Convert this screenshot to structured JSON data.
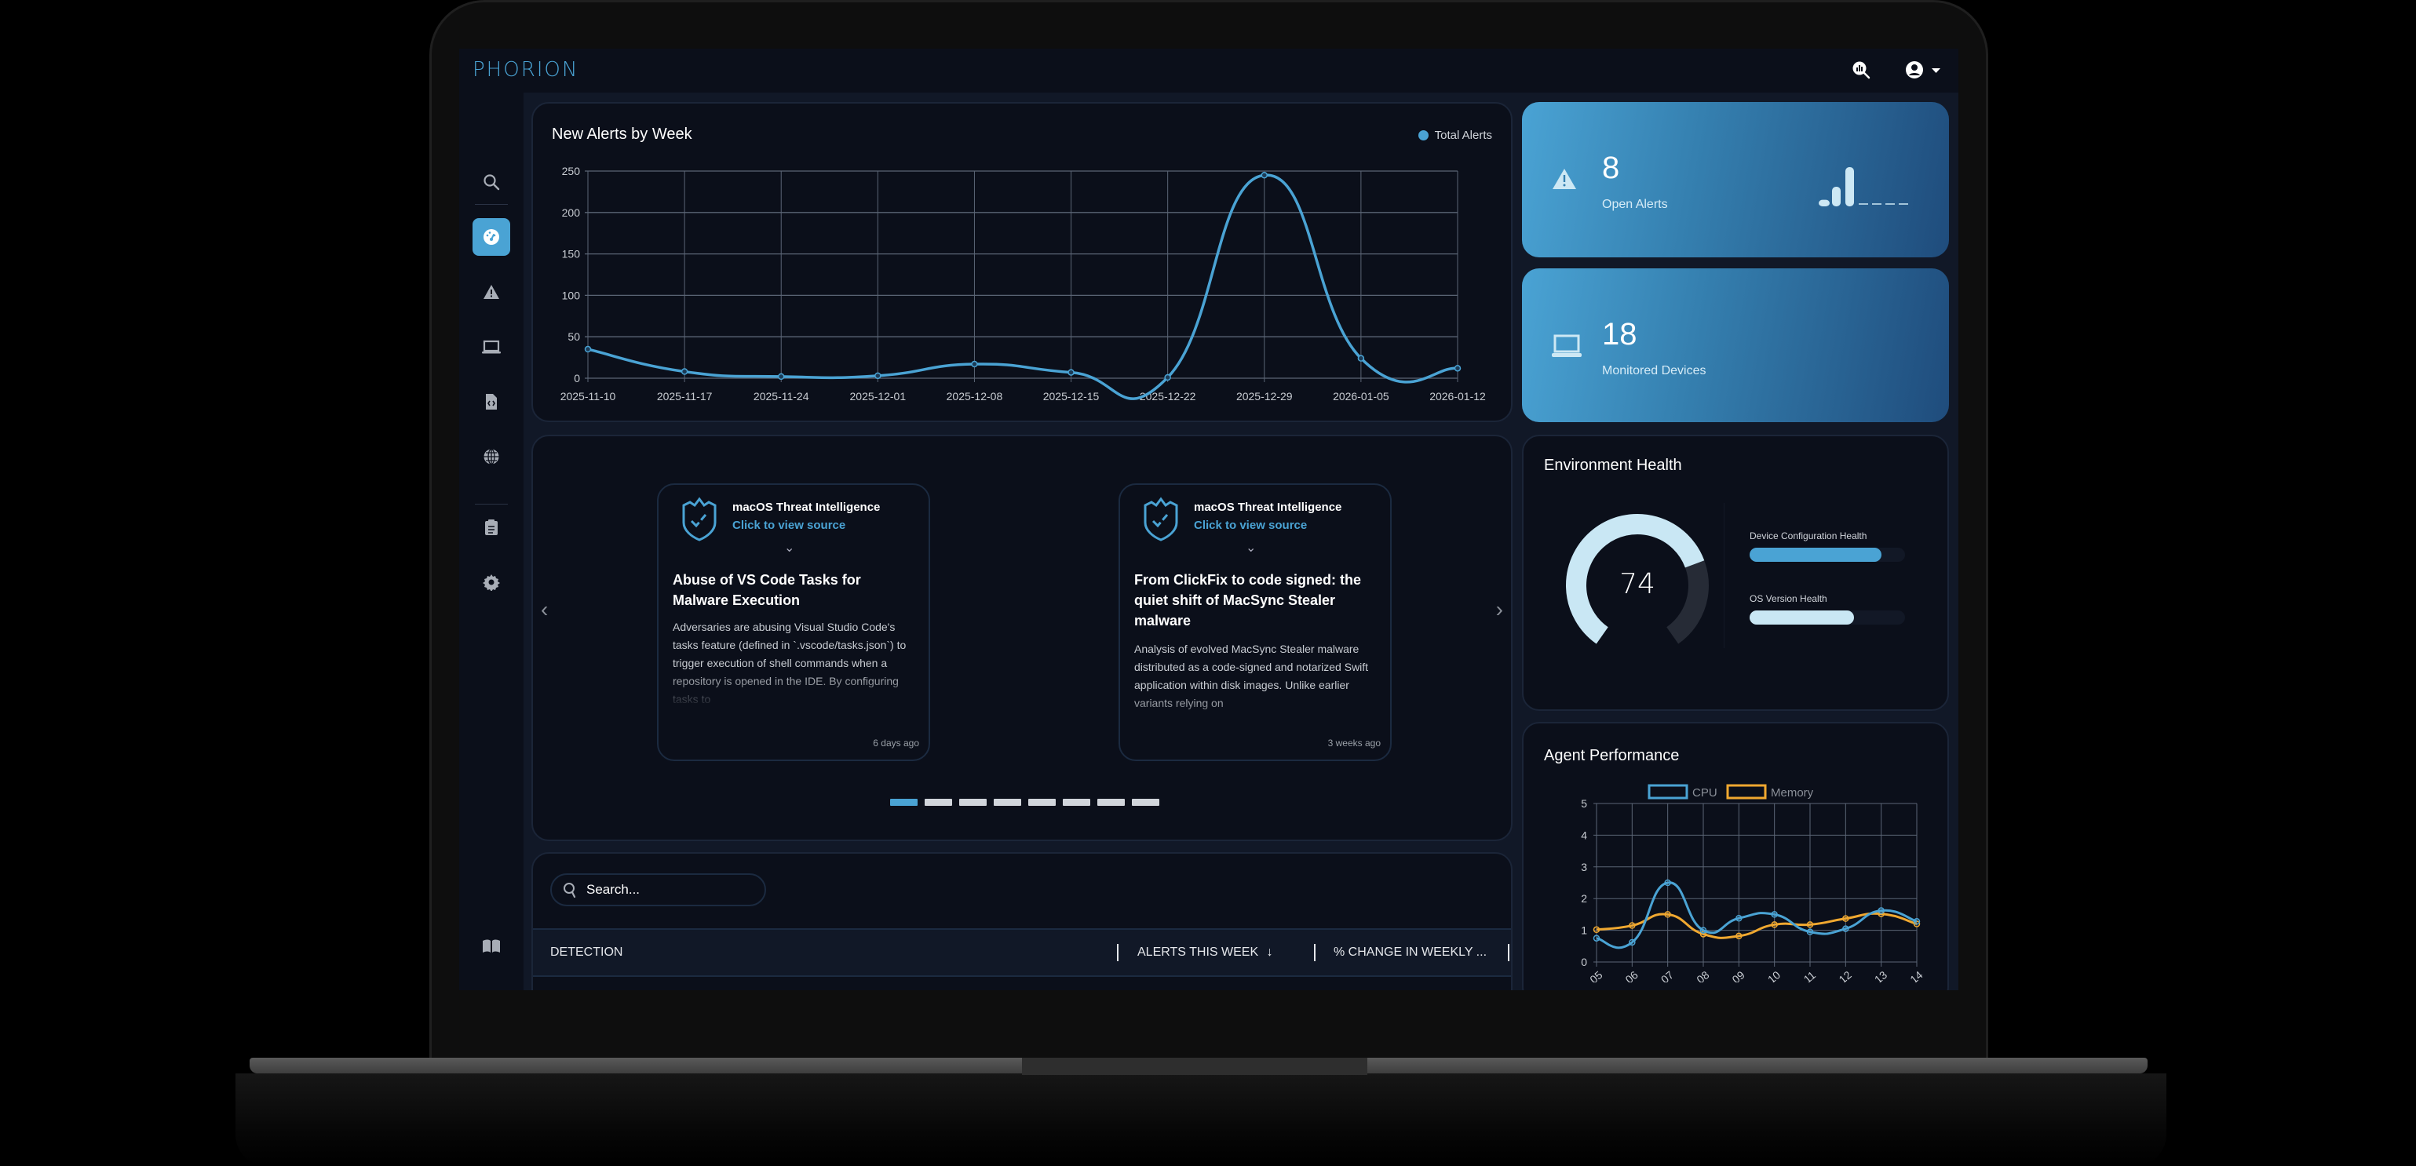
{
  "app": {
    "logo": "PHORION"
  },
  "topbar": {
    "icons": [
      "analytics-search-icon",
      "user-circle-icon",
      "caret-down-icon"
    ]
  },
  "sidebar": {
    "items": [
      {
        "name": "search",
        "icon": "search-icon",
        "active": false
      },
      {
        "name": "dashboard",
        "icon": "gauge-icon",
        "active": true
      },
      {
        "name": "alerts",
        "icon": "warning-icon",
        "active": false
      },
      {
        "name": "devices",
        "icon": "laptop-icon",
        "active": false
      },
      {
        "name": "code-files",
        "icon": "file-code-icon",
        "active": false
      },
      {
        "name": "network",
        "icon": "globe-icon",
        "active": false
      },
      {
        "name": "reports",
        "icon": "clipboard-list-icon",
        "active": false
      },
      {
        "name": "settings",
        "icon": "gear-icon",
        "active": false
      },
      {
        "name": "docs",
        "icon": "book-icon",
        "active": false
      },
      {
        "name": "integrations",
        "icon": "nodes-icon",
        "active": false
      }
    ]
  },
  "alerts_chart": {
    "title": "New Alerts by Week",
    "legend": "Total Alerts"
  },
  "stats": {
    "open_alerts": {
      "value": "8",
      "label": "Open Alerts"
    },
    "devices": {
      "value": "18",
      "label": "Monitored Devices"
    }
  },
  "carousel": {
    "cards": [
      {
        "source": "macOS Threat Intelligence",
        "link": "Click to view source",
        "title": "Abuse of VS Code Tasks for Malware Execution",
        "body": "Adversaries are abusing Visual Studio Code's tasks feature (defined in `.vscode/tasks.json`) to trigger execution of shell commands when a repository is opened in the IDE. By configuring tasks to",
        "time": "6 days ago"
      },
      {
        "source": "macOS Threat Intelligence",
        "link": "Click to view source",
        "title": "From ClickFix to code signed: the quiet shift of MacSync Stealer malware",
        "body": "Analysis of evolved MacSync Stealer malware distributed as a code-signed and notarized Swift application within disk images. Unlike earlier variants relying on",
        "time": "3 weeks ago"
      }
    ],
    "page_count": 8,
    "active_page": 1
  },
  "detections": {
    "search_placeholder": "Search...",
    "columns": [
      "DETECTION",
      "ALERTS THIS WEEK",
      "% CHANGE IN WEEKLY ..."
    ],
    "sort_indicator": "↓"
  },
  "env_health": {
    "title": "Environment Health",
    "score": "74",
    "metrics": [
      {
        "label": "Device Configuration Health",
        "percent": 85,
        "color": "#4aa3d4"
      },
      {
        "label": "OS Version Health",
        "percent": 67,
        "color": "#c9e7f4"
      }
    ]
  },
  "agent_perf": {
    "title": "Agent Performance"
  },
  "colors": {
    "accent": "#4aa3d4",
    "memory": "#f0a830",
    "light": "#c9e7f4"
  },
  "chart_data": [
    {
      "type": "line",
      "title": "New Alerts by Week",
      "x": [
        "2025-11-10",
        "2025-11-17",
        "2025-11-24",
        "2025-12-01",
        "2025-12-08",
        "2025-12-15",
        "2025-12-22",
        "2025-12-29",
        "2026-01-05",
        "2026-01-12"
      ],
      "series": [
        {
          "name": "Total Alerts",
          "values": [
            35,
            8,
            2,
            3,
            17,
            7,
            1,
            245,
            24,
            12
          ]
        }
      ],
      "yticks": [
        0,
        50,
        100,
        150,
        200,
        250
      ],
      "ylim": [
        0,
        250
      ],
      "legend_position": "top-right",
      "grid": true
    },
    {
      "type": "line",
      "title": "Agent Performance",
      "x": [
        "05",
        "06",
        "07",
        "08",
        "09",
        "10",
        "11",
        "12",
        "13",
        "14"
      ],
      "series": [
        {
          "name": "CPU",
          "values": [
            0.75,
            0.62,
            2.5,
            1.0,
            1.38,
            1.5,
            0.95,
            1.05,
            1.62,
            1.28
          ]
        },
        {
          "name": "Memory",
          "values": [
            1.02,
            1.15,
            1.5,
            0.88,
            0.82,
            1.18,
            1.18,
            1.37,
            1.52,
            1.2
          ]
        }
      ],
      "yticks": [
        0,
        1,
        2,
        3,
        4,
        5
      ],
      "ylim": [
        0,
        5
      ],
      "legend_position": "top",
      "grid": true
    },
    {
      "type": "bar",
      "title": "Open Alerts sparkline",
      "values": [
        1,
        3,
        6,
        0,
        0,
        0,
        0
      ]
    },
    {
      "type": "pie",
      "title": "Environment Health gauge",
      "values": [
        74,
        26
      ]
    }
  ]
}
